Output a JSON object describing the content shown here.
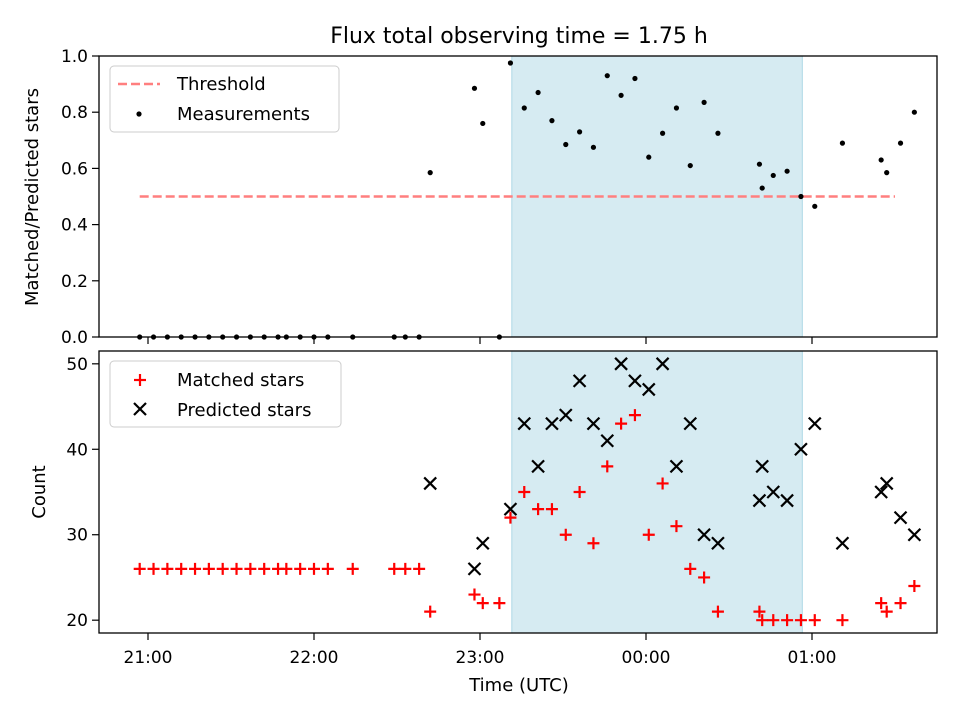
{
  "figure": {
    "title": "Flux total observing time = 1.75 h",
    "xlabel": "Time (UTC)",
    "highlight_color": "#add8e6",
    "x_ticks": [
      {
        "t": 0,
        "label": "21:00"
      },
      {
        "t": 60,
        "label": "22:00"
      },
      {
        "t": 120,
        "label": "23:00"
      },
      {
        "t": 180,
        "label": "00:00"
      },
      {
        "t": 240,
        "label": "01:00"
      }
    ]
  },
  "chart_data": [
    {
      "type": "scatter",
      "ylabel": "Matched/Predicted stars",
      "ylim": [
        0,
        1.0
      ],
      "yticks": [
        {
          "v": 0.0,
          "label": "0.0"
        },
        {
          "v": 0.2,
          "label": "0.2"
        },
        {
          "v": 0.4,
          "label": "0.4"
        },
        {
          "v": 0.6,
          "label": "0.6"
        },
        {
          "v": 0.8,
          "label": "0.8"
        },
        {
          "v": 1.0,
          "label": "1.0"
        }
      ],
      "legend_position": "top-left",
      "threshold": {
        "name": "Threshold",
        "value": 0.5,
        "x_range": [
          -3,
          270
        ],
        "color": "#ff7f7f"
      },
      "highlight_span": {
        "start": 131.5,
        "end": 236.5
      },
      "series": [
        {
          "name": "Measurements",
          "color": "#000000",
          "marker": "dot",
          "points": [
            [
              -3,
              0.0
            ],
            [
              2,
              0.0
            ],
            [
              7,
              0.0
            ],
            [
              12,
              0.0
            ],
            [
              17,
              0.0
            ],
            [
              22,
              0.0
            ],
            [
              27,
              0.0
            ],
            [
              32,
              0.0
            ],
            [
              37,
              0.0
            ],
            [
              42,
              0.0
            ],
            [
              47,
              0.0
            ],
            [
              50,
              0.0
            ],
            [
              55,
              0.0
            ],
            [
              60,
              0.0
            ],
            [
              65,
              0.0
            ],
            [
              74,
              0.0
            ],
            [
              89,
              0.0
            ],
            [
              93,
              0.0
            ],
            [
              98,
              0.0
            ],
            [
              102,
              0.585
            ],
            [
              118,
              0.885
            ],
            [
              121,
              0.76
            ],
            [
              127,
              0.0
            ],
            [
              131,
              0.975
            ],
            [
              136,
              0.815
            ],
            [
              141,
              0.87
            ],
            [
              146,
              0.77
            ],
            [
              151,
              0.685
            ],
            [
              156,
              0.73
            ],
            [
              161,
              0.675
            ],
            [
              166,
              0.93
            ],
            [
              171,
              0.86
            ],
            [
              176,
              0.92
            ],
            [
              181,
              0.64
            ],
            [
              186,
              0.725
            ],
            [
              191,
              0.815
            ],
            [
              196,
              0.61
            ],
            [
              201,
              0.835
            ],
            [
              206,
              0.725
            ],
            [
              221,
              0.615
            ],
            [
              222,
              0.53
            ],
            [
              226,
              0.575
            ],
            [
              231,
              0.59
            ],
            [
              236,
              0.5
            ],
            [
              241,
              0.465
            ],
            [
              251,
              0.69
            ],
            [
              265,
              0.63
            ],
            [
              267,
              0.585
            ],
            [
              272,
              0.69
            ],
            [
              277,
              0.8
            ]
          ]
        }
      ]
    },
    {
      "type": "scatter",
      "ylabel": "Count",
      "ylim": [
        18.5,
        51.5
      ],
      "yticks": [
        {
          "v": 20,
          "label": "20"
        },
        {
          "v": 30,
          "label": "30"
        },
        {
          "v": 40,
          "label": "40"
        },
        {
          "v": 50,
          "label": "50"
        }
      ],
      "legend_position": "top-left",
      "highlight_span": {
        "start": 131.5,
        "end": 236.5
      },
      "series": [
        {
          "name": "Matched stars",
          "color": "#ff0000",
          "marker": "plus",
          "points": [
            [
              -3,
              26
            ],
            [
              2,
              26
            ],
            [
              7,
              26
            ],
            [
              12,
              26
            ],
            [
              17,
              26
            ],
            [
              22,
              26
            ],
            [
              27,
              26
            ],
            [
              32,
              26
            ],
            [
              37,
              26
            ],
            [
              42,
              26
            ],
            [
              47,
              26
            ],
            [
              50,
              26
            ],
            [
              55,
              26
            ],
            [
              60,
              26
            ],
            [
              65,
              26
            ],
            [
              74,
              26
            ],
            [
              89,
              26
            ],
            [
              93,
              26
            ],
            [
              98,
              26
            ],
            [
              102,
              21
            ],
            [
              118,
              23
            ],
            [
              121,
              22
            ],
            [
              127,
              22
            ],
            [
              131,
              32
            ],
            [
              136,
              35
            ],
            [
              141,
              33
            ],
            [
              146,
              33
            ],
            [
              151,
              30
            ],
            [
              156,
              35
            ],
            [
              161,
              29
            ],
            [
              166,
              38
            ],
            [
              171,
              43
            ],
            [
              176,
              44
            ],
            [
              181,
              30
            ],
            [
              186,
              36
            ],
            [
              191,
              31
            ],
            [
              196,
              26
            ],
            [
              201,
              25
            ],
            [
              206,
              21
            ],
            [
              221,
              21
            ],
            [
              222,
              20
            ],
            [
              226,
              20
            ],
            [
              231,
              20
            ],
            [
              236,
              20
            ],
            [
              241,
              20
            ],
            [
              251,
              20
            ],
            [
              265,
              22
            ],
            [
              267,
              21
            ],
            [
              272,
              22
            ],
            [
              277,
              24
            ]
          ]
        },
        {
          "name": "Predicted stars",
          "color": "#000000",
          "marker": "x",
          "points": [
            [
              102,
              36
            ],
            [
              118,
              26
            ],
            [
              121,
              29
            ],
            [
              131,
              33
            ],
            [
              136,
              43
            ],
            [
              141,
              38
            ],
            [
              146,
              43
            ],
            [
              151,
              44
            ],
            [
              156,
              48
            ],
            [
              161,
              43
            ],
            [
              166,
              41
            ],
            [
              171,
              50
            ],
            [
              176,
              48
            ],
            [
              181,
              47
            ],
            [
              186,
              50
            ],
            [
              191,
              38
            ],
            [
              196,
              43
            ],
            [
              201,
              30
            ],
            [
              206,
              29
            ],
            [
              221,
              34
            ],
            [
              222,
              38
            ],
            [
              226,
              35
            ],
            [
              231,
              34
            ],
            [
              236,
              40
            ],
            [
              241,
              43
            ],
            [
              251,
              29
            ],
            [
              265,
              35
            ],
            [
              267,
              36
            ],
            [
              272,
              32
            ],
            [
              277,
              30
            ]
          ]
        }
      ]
    }
  ]
}
